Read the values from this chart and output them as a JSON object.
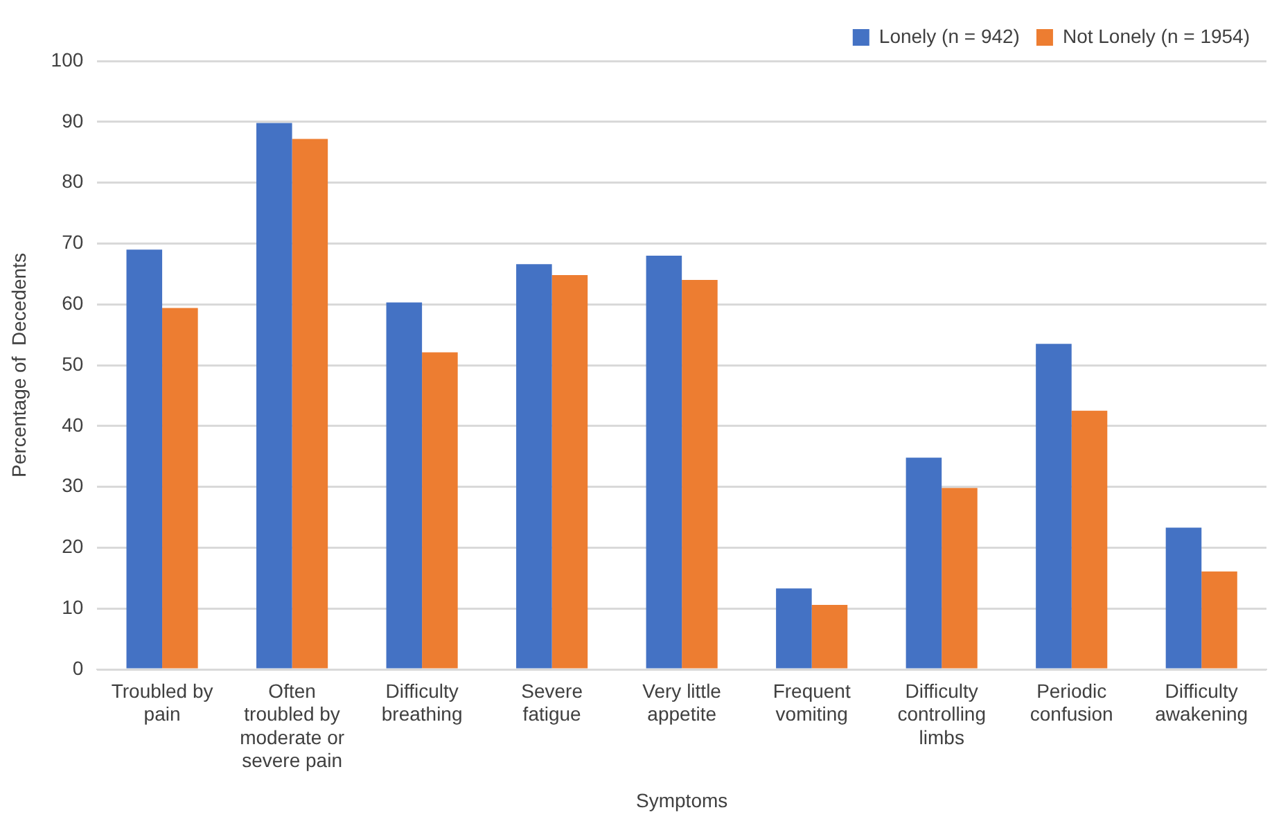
{
  "chart_data": {
    "type": "bar",
    "xlabel": "Symptoms",
    "ylabel": "Percentage of  Decedents",
    "categories": [
      "Troubled by pain",
      "Often troubled by moderate or severe pain",
      "Difficulty breathing",
      "Severe fatigue",
      "Very little appetite",
      "Frequent vomiting",
      "Difficulty controlling limbs",
      "Periodic confusion",
      "Difficulty awakening"
    ],
    "series": [
      {
        "name": "Lonely (n = 942)",
        "color": "#4472c4",
        "values": [
          69,
          89.8,
          60.3,
          66.6,
          68,
          13.3,
          34.8,
          53.5,
          23.3
        ]
      },
      {
        "name": "Not Lonely (n = 1954)",
        "color": "#ed7d31",
        "values": [
          59.4,
          87.2,
          52.1,
          64.8,
          64,
          10.6,
          29.8,
          42.5,
          16.1
        ]
      }
    ],
    "ylim": [
      0,
      100
    ],
    "yticks": [
      0,
      10,
      20,
      30,
      40,
      50,
      60,
      70,
      80,
      90,
      100
    ],
    "grid": "y",
    "legend": "top right"
  }
}
